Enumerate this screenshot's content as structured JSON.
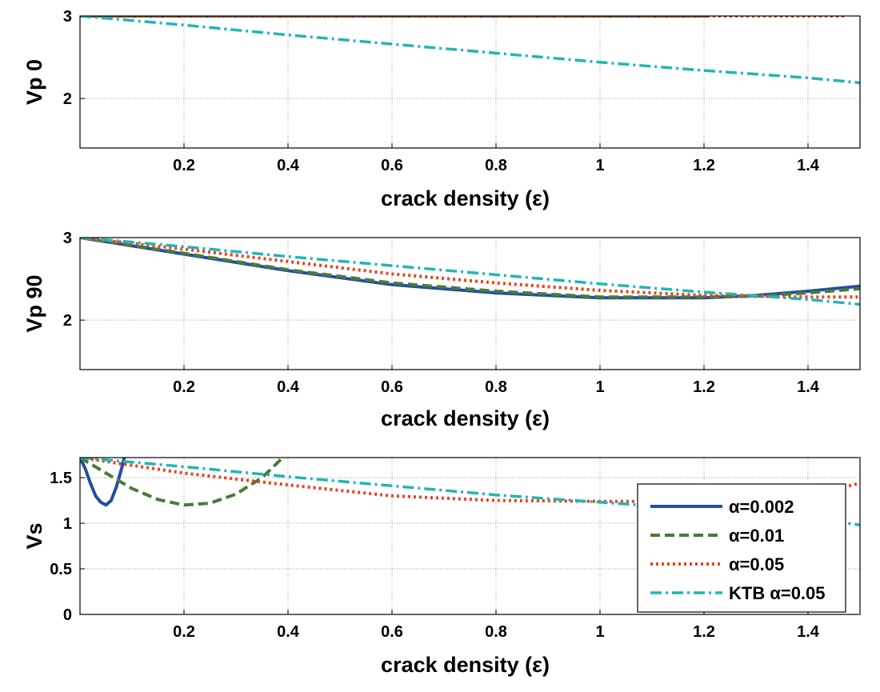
{
  "chart_data": [
    {
      "type": "line",
      "xlabel": "crack density (ε)",
      "ylabel": "Vp 0",
      "xlim": [
        0,
        1.5
      ],
      "ylim": [
        1.4,
        3.0
      ],
      "xticks": [
        0.2,
        0.4,
        0.6,
        0.8,
        1,
        1.2,
        1.4
      ],
      "yticks": [
        2,
        3
      ],
      "grid": true,
      "series": [
        {
          "key": "a002",
          "points": [
            [
              0,
              3.0
            ],
            [
              1.21,
              3.0
            ]
          ]
        },
        {
          "key": "a01",
          "points": [
            [
              0,
              3.0
            ],
            [
              1.21,
              3.0
            ]
          ]
        },
        {
          "key": "a05",
          "points": [
            [
              0,
              3.0
            ],
            [
              1.47,
              3.0
            ]
          ]
        },
        {
          "key": "ktb",
          "points": [
            [
              0,
              3.0
            ],
            [
              0.2,
              2.89
            ],
            [
              0.4,
              2.77
            ],
            [
              0.6,
              2.66
            ],
            [
              0.8,
              2.55
            ],
            [
              1.0,
              2.44
            ],
            [
              1.2,
              2.34
            ],
            [
              1.4,
              2.25
            ],
            [
              1.5,
              2.19
            ]
          ]
        }
      ]
    },
    {
      "type": "line",
      "xlabel": "crack density (ε)",
      "ylabel": "Vp 90",
      "xlim": [
        0,
        1.5
      ],
      "ylim": [
        1.4,
        3.0
      ],
      "xticks": [
        0.2,
        0.4,
        0.6,
        0.8,
        1,
        1.2,
        1.4
      ],
      "yticks": [
        2,
        3
      ],
      "grid": true,
      "series": [
        {
          "key": "a002",
          "points": [
            [
              0,
              3.0
            ],
            [
              0.2,
              2.8
            ],
            [
              0.4,
              2.6
            ],
            [
              0.6,
              2.43
            ],
            [
              0.8,
              2.33
            ],
            [
              1.0,
              2.27
            ],
            [
              1.2,
              2.27
            ],
            [
              1.3,
              2.3
            ],
            [
              1.4,
              2.35
            ],
            [
              1.5,
              2.41
            ]
          ]
        },
        {
          "key": "a01",
          "points": [
            [
              0,
              3.0
            ],
            [
              0.2,
              2.81
            ],
            [
              0.4,
              2.61
            ],
            [
              0.6,
              2.45
            ],
            [
              0.8,
              2.35
            ],
            [
              1.0,
              2.28
            ],
            [
              1.2,
              2.28
            ],
            [
              1.3,
              2.29
            ],
            [
              1.4,
              2.33
            ],
            [
              1.5,
              2.38
            ]
          ]
        },
        {
          "key": "a05",
          "points": [
            [
              0,
              3.0
            ],
            [
              0.2,
              2.86
            ],
            [
              0.4,
              2.71
            ],
            [
              0.6,
              2.56
            ],
            [
              0.8,
              2.45
            ],
            [
              1.0,
              2.36
            ],
            [
              1.2,
              2.3
            ],
            [
              1.4,
              2.28
            ],
            [
              1.5,
              2.28
            ]
          ]
        },
        {
          "key": "ktb",
          "points": [
            [
              0,
              3.0
            ],
            [
              0.2,
              2.89
            ],
            [
              0.4,
              2.77
            ],
            [
              0.6,
              2.66
            ],
            [
              0.8,
              2.55
            ],
            [
              1.0,
              2.44
            ],
            [
              1.2,
              2.34
            ],
            [
              1.4,
              2.25
            ],
            [
              1.5,
              2.19
            ]
          ]
        }
      ]
    },
    {
      "type": "line",
      "xlabel": "crack density (ε)",
      "ylabel": "Vs",
      "xlim": [
        0,
        1.5
      ],
      "ylim": [
        0,
        1.72
      ],
      "xticks": [
        0.2,
        0.4,
        0.6,
        0.8,
        1,
        1.2,
        1.4
      ],
      "yticks": [
        0,
        0.5,
        1,
        1.5
      ],
      "ytick_labels": [
        "0",
        "0.5",
        "1",
        "1.5"
      ],
      "grid": true,
      "legend": "right",
      "series": [
        {
          "key": "a002",
          "name": "α=0.002",
          "points": [
            [
              0,
              1.72
            ],
            [
              0.01,
              1.6
            ],
            [
              0.02,
              1.44
            ],
            [
              0.03,
              1.3
            ],
            [
              0.04,
              1.23
            ],
            [
              0.05,
              1.2
            ],
            [
              0.06,
              1.25
            ],
            [
              0.07,
              1.4
            ],
            [
              0.08,
              1.6
            ],
            [
              0.085,
              1.72
            ]
          ]
        },
        {
          "key": "a01",
          "name": "α=0.01",
          "points": [
            [
              0,
              1.72
            ],
            [
              0.05,
              1.55
            ],
            [
              0.1,
              1.38
            ],
            [
              0.15,
              1.26
            ],
            [
              0.2,
              1.2
            ],
            [
              0.25,
              1.22
            ],
            [
              0.3,
              1.32
            ],
            [
              0.35,
              1.5
            ],
            [
              0.39,
              1.72
            ]
          ]
        },
        {
          "key": "a05",
          "name": "α=0.05",
          "points": [
            [
              0,
              1.72
            ],
            [
              0.2,
              1.55
            ],
            [
              0.4,
              1.42
            ],
            [
              0.6,
              1.3
            ],
            [
              0.8,
              1.25
            ],
            [
              1.0,
              1.24
            ],
            [
              1.2,
              1.24
            ],
            [
              1.4,
              1.3
            ],
            [
              1.5,
              1.44
            ]
          ]
        },
        {
          "key": "ktb",
          "name": "KTB α=0.05",
          "points": [
            [
              0,
              1.72
            ],
            [
              0.2,
              1.62
            ],
            [
              0.4,
              1.51
            ],
            [
              0.6,
              1.41
            ],
            [
              0.8,
              1.31
            ],
            [
              1.0,
              1.23
            ],
            [
              1.2,
              1.15
            ],
            [
              1.4,
              1.06
            ],
            [
              1.5,
              0.98
            ]
          ]
        }
      ]
    }
  ],
  "styles": {
    "a002": {
      "color": "#1f4fa3",
      "dash": "",
      "width": 4
    },
    "a01": {
      "color": "#4a7a3a",
      "dash": "12 6",
      "width": 4
    },
    "a05": {
      "color": "#e8431a",
      "dash": "3 4",
      "width": 4
    },
    "ktb": {
      "color": "#22b5b5",
      "dash": "14 5 3 5",
      "width": 3.5
    }
  }
}
